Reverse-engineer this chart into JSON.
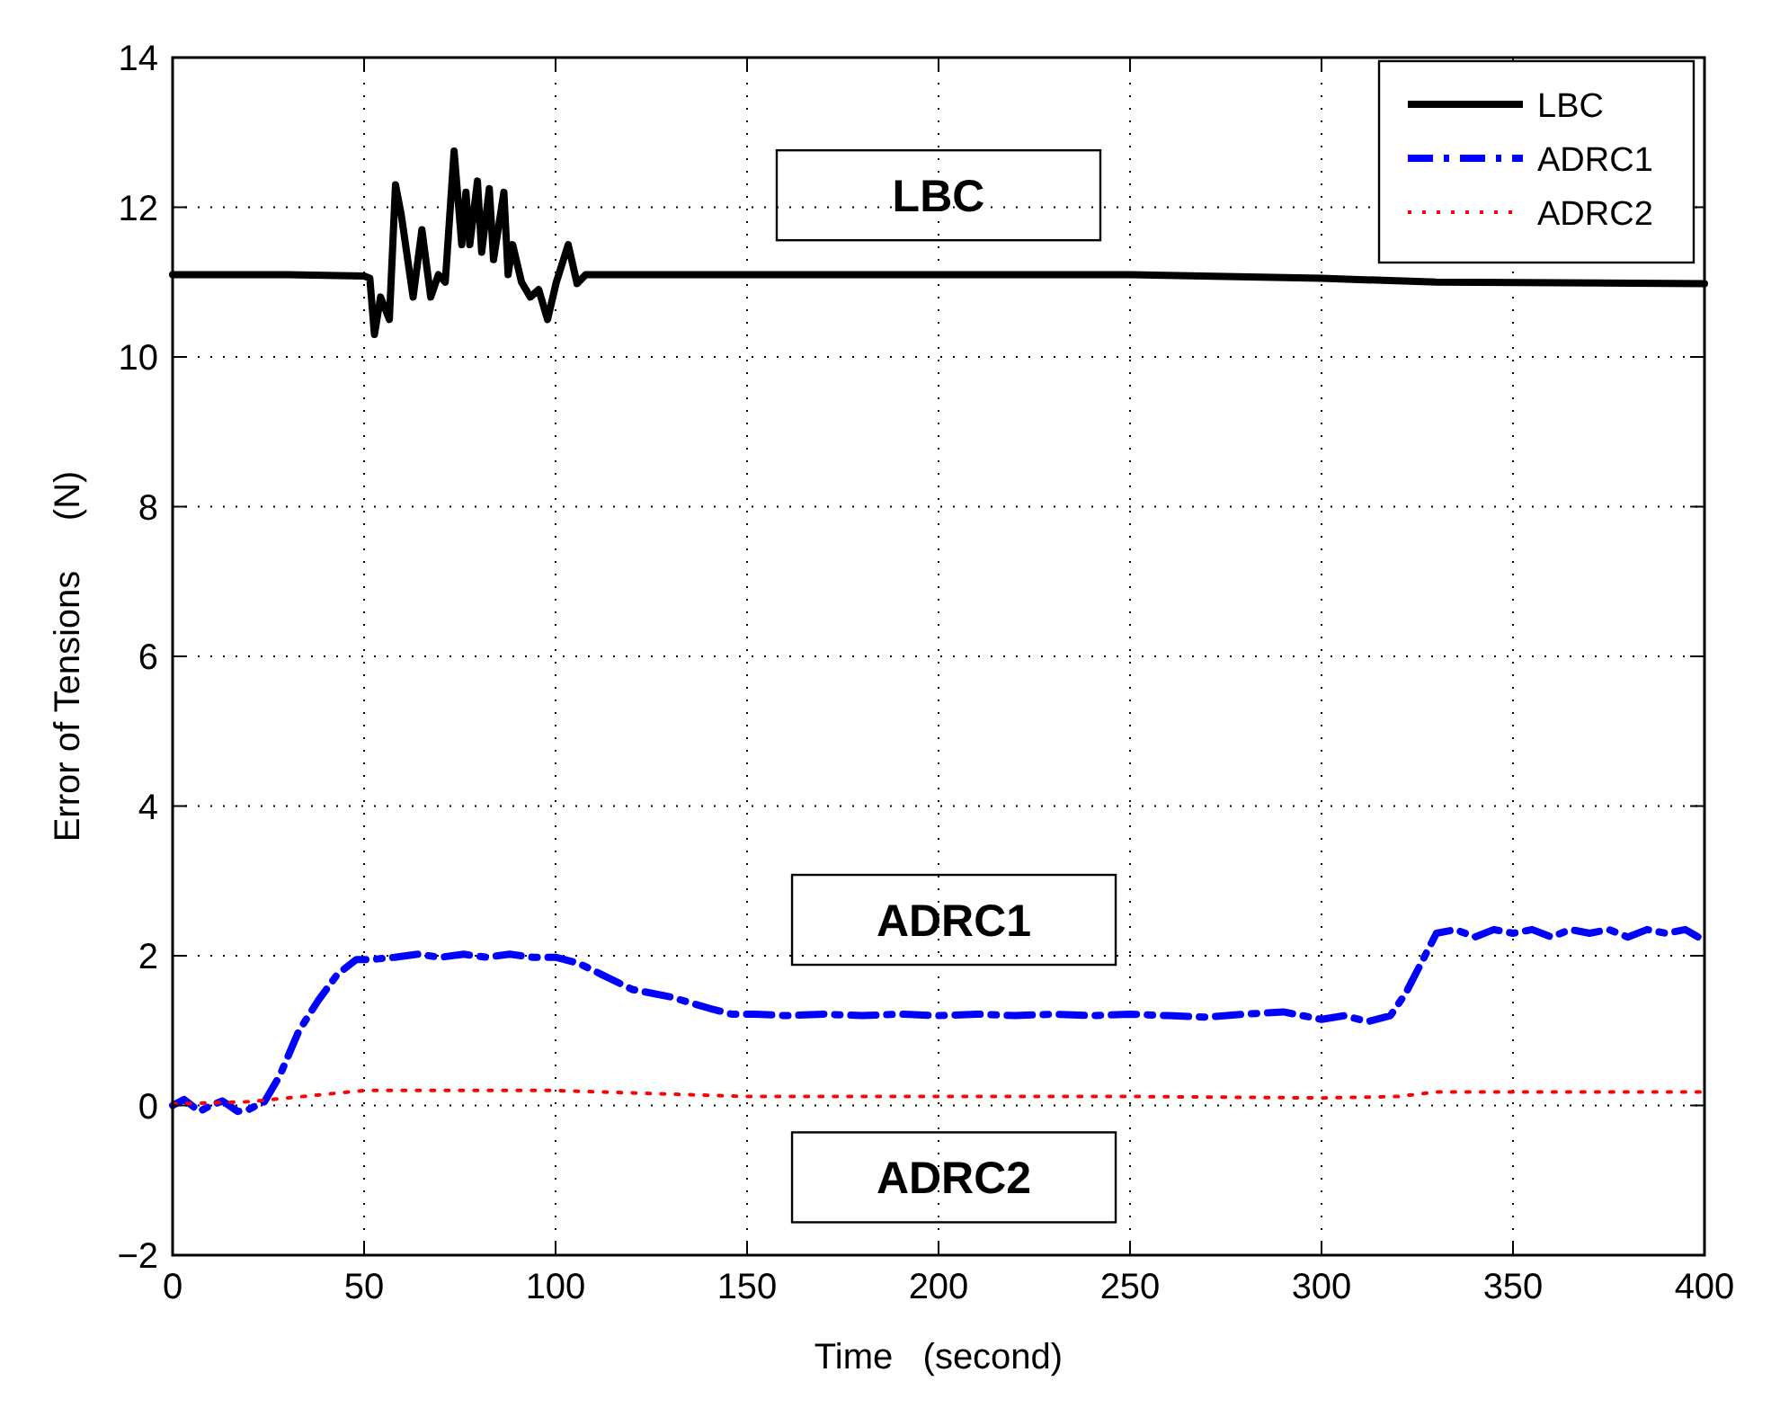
{
  "chart_data": {
    "type": "line",
    "xlabel": "Time   (second)",
    "ylabel": "Error of Tensions     (N)",
    "xlim": [
      0,
      400
    ],
    "xticks": [
      0,
      50,
      100,
      150,
      200,
      250,
      300,
      350,
      400
    ],
    "ylim": [
      -2,
      14
    ],
    "yticks": [
      {
        "value": -2,
        "label": "−2"
      },
      0,
      2,
      4,
      6,
      8,
      10,
      12,
      14
    ],
    "grid": true,
    "legend": "top right",
    "annotations": [
      "LBC",
      "ADRC1",
      "ADRC2"
    ],
    "series": [
      {
        "name": "LBC",
        "color": "#000000",
        "line_style": "solid",
        "x": [
          0,
          30,
          50,
          51.5,
          52.7,
          54.3,
          56.6,
          58.2,
          59.7,
          62.8,
          65.1,
          67.4,
          69.4,
          71.2,
          73.5,
          75.5,
          76.6,
          77.6,
          79.6,
          80.7,
          82.7,
          83.8,
          86.5,
          87.6,
          88.8,
          91.1,
          93.4,
          95.6,
          97.9,
          100.2,
          103.3,
          105.6,
          107.9,
          150,
          250,
          300,
          330,
          400
        ],
        "values": [
          11.1,
          11.1,
          11.08,
          11.05,
          10.3,
          10.8,
          10.5,
          12.3,
          11.9,
          10.8,
          11.7,
          10.8,
          11.1,
          11.0,
          12.75,
          11.5,
          12.2,
          11.5,
          12.35,
          11.4,
          12.25,
          11.3,
          12.2,
          11.1,
          11.5,
          11.0,
          10.8,
          10.9,
          10.5,
          11.0,
          11.5,
          10.98,
          11.1,
          11.1,
          11.1,
          11.05,
          11.0,
          10.98
        ]
      },
      {
        "name": "ADRC1",
        "color": "#0000ff",
        "line_style": "dashed",
        "x": [
          0,
          3,
          7,
          10,
          13,
          17,
          20,
          24,
          28,
          33,
          38,
          43,
          48,
          52,
          58,
          64,
          70,
          76,
          82,
          88,
          94,
          100,
          106,
          112,
          120,
          130,
          140,
          146,
          152,
          160,
          170,
          180,
          190,
          200,
          210,
          220,
          230,
          240,
          250,
          260,
          270,
          280,
          290,
          300,
          306,
          312,
          318,
          322,
          326,
          330,
          335,
          340,
          345,
          350,
          355,
          360,
          365,
          370,
          375,
          380,
          385,
          390,
          395,
          400
        ],
        "values": [
          0,
          0.08,
          -0.08,
          0.0,
          0.06,
          -0.08,
          -0.05,
          0.05,
          0.4,
          1.0,
          1.4,
          1.75,
          1.95,
          1.95,
          1.98,
          2.02,
          1.98,
          2.02,
          1.98,
          2.02,
          1.98,
          1.98,
          1.9,
          1.75,
          1.55,
          1.45,
          1.3,
          1.22,
          1.22,
          1.2,
          1.22,
          1.2,
          1.22,
          1.2,
          1.22,
          1.2,
          1.22,
          1.2,
          1.22,
          1.2,
          1.18,
          1.22,
          1.25,
          1.15,
          1.2,
          1.12,
          1.2,
          1.5,
          1.9,
          2.3,
          2.35,
          2.25,
          2.35,
          2.3,
          2.35,
          2.25,
          2.35,
          2.3,
          2.35,
          2.25,
          2.35,
          2.3,
          2.35,
          2.2
        ]
      },
      {
        "name": "ADRC2",
        "color": "#ff0000",
        "line_style": "dotted",
        "x": [
          0,
          20,
          30,
          40,
          50,
          100,
          150,
          200,
          250,
          300,
          320,
          330,
          400
        ],
        "values": [
          0.02,
          0.05,
          0.1,
          0.15,
          0.2,
          0.2,
          0.12,
          0.12,
          0.12,
          0.1,
          0.12,
          0.18,
          0.18
        ]
      }
    ]
  }
}
